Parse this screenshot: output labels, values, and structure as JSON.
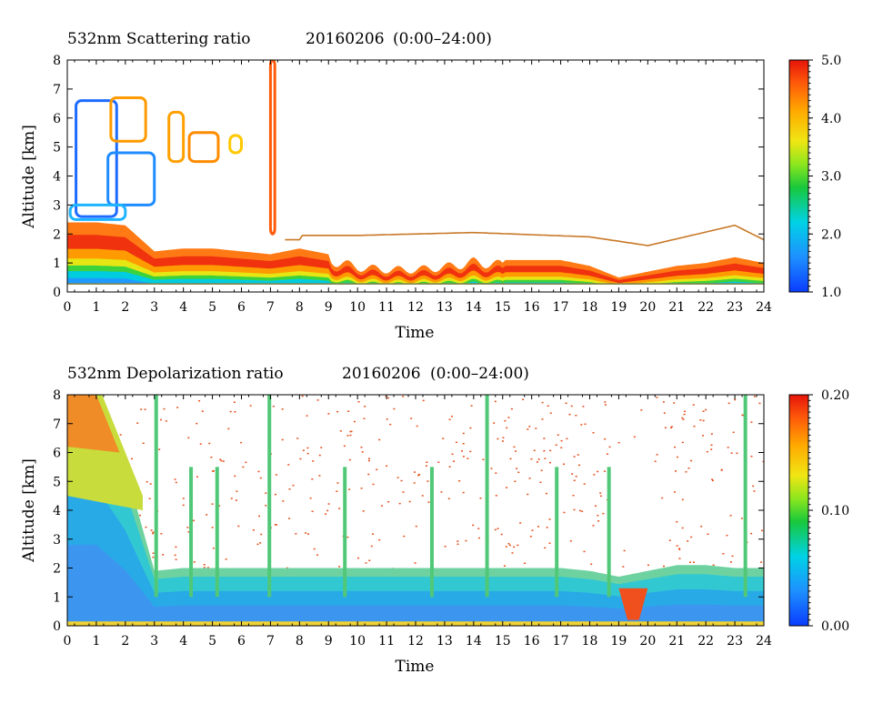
{
  "chart_data": [
    {
      "type": "heatmap",
      "title": "532nm Scattering ratio",
      "date": "20160206",
      "period": "(0:00–24:00)",
      "xlabel": "Time",
      "ylabel": "Altitude [km]",
      "xlim": [
        0,
        24
      ],
      "ylim": [
        0,
        8
      ],
      "x_ticks": [
        0,
        1,
        2,
        3,
        4,
        5,
        6,
        7,
        8,
        9,
        10,
        11,
        12,
        13,
        14,
        15,
        16,
        17,
        18,
        19,
        20,
        21,
        22,
        23,
        24
      ],
      "y_ticks": [
        0,
        1,
        2,
        3,
        4,
        5,
        6,
        7,
        8
      ],
      "colorbar": {
        "min": 1.0,
        "max": 5.0,
        "ticks": [
          "1.0",
          "2.0",
          "3.0",
          "4.0",
          "5.0"
        ]
      },
      "boundary_layer_top_km": [
        [
          0,
          2.4
        ],
        [
          1,
          2.4
        ],
        [
          2,
          2.3
        ],
        [
          3,
          1.4
        ],
        [
          4,
          1.5
        ],
        [
          5,
          1.5
        ],
        [
          6,
          1.4
        ],
        [
          7,
          1.3
        ],
        [
          8,
          1.5
        ],
        [
          9,
          1.3
        ],
        [
          10,
          1.0
        ],
        [
          11,
          0.9
        ],
        [
          12,
          0.9
        ],
        [
          13,
          1.0
        ],
        [
          14,
          1.2
        ],
        [
          15,
          1.1
        ],
        [
          16,
          1.1
        ],
        [
          17,
          1.1
        ],
        [
          18,
          0.9
        ],
        [
          19,
          0.5
        ],
        [
          20,
          0.7
        ],
        [
          21,
          0.9
        ],
        [
          22,
          1.0
        ],
        [
          23,
          1.2
        ],
        [
          24,
          1.0
        ]
      ],
      "residual_layer_top_km": [
        [
          8,
          1.95
        ],
        [
          10,
          1.95
        ],
        [
          14,
          2.05
        ],
        [
          18,
          1.9
        ],
        [
          20,
          1.6
        ],
        [
          23,
          2.3
        ],
        [
          24,
          1.8
        ]
      ]
    },
    {
      "type": "heatmap",
      "title": "532nm Depolarization ratio",
      "date": "20160206",
      "period": "(0:00–24:00)",
      "xlabel": "Time",
      "ylabel": "Altitude [km]",
      "xlim": [
        0,
        24
      ],
      "ylim": [
        0,
        8
      ],
      "x_ticks": [
        0,
        1,
        2,
        3,
        4,
        5,
        6,
        7,
        8,
        9,
        10,
        11,
        12,
        13,
        14,
        15,
        16,
        17,
        18,
        19,
        20,
        21,
        22,
        23,
        24
      ],
      "y_ticks": [
        0,
        1,
        2,
        3,
        4,
        5,
        6,
        7,
        8
      ],
      "colorbar": {
        "min": 0.0,
        "max": 0.2,
        "ticks": [
          "0.00",
          "0.10",
          "0.20"
        ]
      },
      "aerosol_layer_top_km": [
        [
          0,
          8.0
        ],
        [
          1,
          8.0
        ],
        [
          2,
          5.5
        ],
        [
          3,
          1.9
        ],
        [
          4,
          2.0
        ],
        [
          5,
          2.0
        ],
        [
          6,
          2.0
        ],
        [
          7,
          2.0
        ],
        [
          8,
          2.0
        ],
        [
          9,
          2.0
        ],
        [
          10,
          2.0
        ],
        [
          11,
          2.0
        ],
        [
          12,
          2.0
        ],
        [
          13,
          2.0
        ],
        [
          14,
          2.0
        ],
        [
          15,
          2.0
        ],
        [
          16,
          2.0
        ],
        [
          17,
          2.0
        ],
        [
          18,
          1.9
        ],
        [
          19,
          1.7
        ],
        [
          20,
          1.9
        ],
        [
          21,
          2.1
        ],
        [
          22,
          2.1
        ],
        [
          23,
          2.0
        ],
        [
          24,
          2.0
        ]
      ],
      "dust_event": {
        "time_range": [
          19.0,
          20.0
        ],
        "altitude_km": [
          0,
          1.3
        ],
        "depol": 0.2
      }
    }
  ]
}
